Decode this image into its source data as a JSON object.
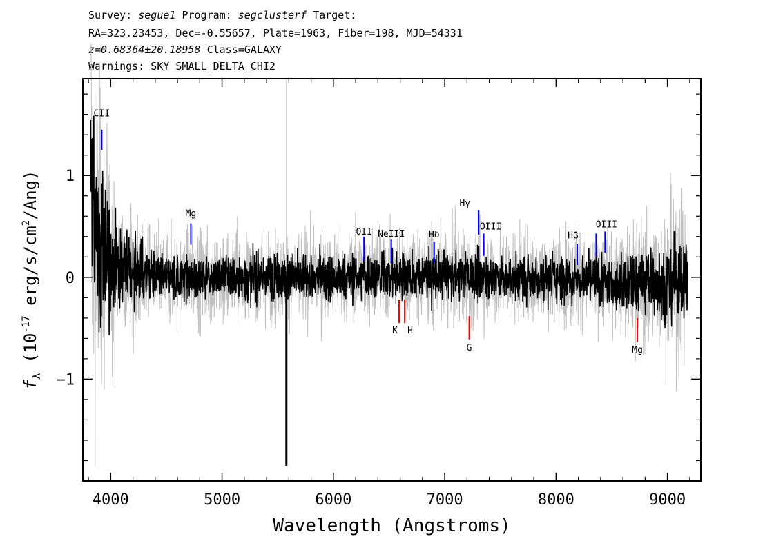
{
  "header": {
    "line1": {
      "survey_label": "Survey:",
      "survey": "segue1",
      "program_label": "Program:",
      "program": "segclusterf",
      "target_label": "Target:"
    },
    "line2": "RA=323.23453, Dec=-0.55657, Plate=1963, Fiber=198, MJD=54331",
    "line3": {
      "redshift": "z=0.68364±20.18958",
      "class": "Class=GALAXY"
    },
    "line4": "Warnings: SKY SMALL_DELTA_CHI2"
  },
  "chart_data": {
    "type": "line",
    "xlabel": "Wavelength (Angstroms)",
    "ylabel": "f_λ (10^-17 erg/s/cm²/Ang)",
    "xlim": [
      3750,
      9300
    ],
    "ylim": [
      -2.0,
      1.95
    ],
    "x_ticks": [
      4000,
      5000,
      6000,
      7000,
      8000,
      9000
    ],
    "y_ticks": [
      -1,
      0,
      1
    ],
    "series": [
      {
        "role": "flux",
        "color": "#000000",
        "knots": [
          [
            3820,
            1.2
          ],
          [
            3850,
            0.5
          ],
          [
            3900,
            0.3
          ],
          [
            4000,
            0.15
          ],
          [
            4200,
            0.05
          ],
          [
            4500,
            0.0
          ],
          [
            5000,
            0.0
          ],
          [
            5500,
            0.0
          ],
          [
            6000,
            0.0
          ],
          [
            6500,
            0.02
          ],
          [
            7000,
            0.02
          ],
          [
            7500,
            0.0
          ],
          [
            8000,
            0.0
          ],
          [
            8500,
            -0.05
          ],
          [
            9000,
            -0.05
          ],
          [
            9180,
            0.0
          ]
        ],
        "spike": {
          "x": 5578,
          "y": -1.85
        }
      },
      {
        "role": "error envelope",
        "color": "#c0c0c0"
      }
    ],
    "lines": [
      {
        "label": "CII",
        "x": 3920,
        "y0": 1.25,
        "y1": 1.45,
        "color": "#0000ff",
        "label_y": 1.58,
        "label_dx": 0
      },
      {
        "label": "Mg",
        "x": 4720,
        "y0": 0.32,
        "y1": 0.53,
        "color": "#0000ff",
        "label_y": 0.6,
        "label_dx": 0
      },
      {
        "label": "OII",
        "x": 6275,
        "y0": 0.16,
        "y1": 0.4,
        "color": "#0000ff",
        "label_y": 0.42,
        "label_dx": 0
      },
      {
        "label": "NeIII",
        "x": 6520,
        "y0": 0.14,
        "y1": 0.37,
        "color": "#0000ff",
        "label_y": 0.4,
        "label_dx": 0
      },
      {
        "label": "Hδ",
        "x": 6905,
        "y0": 0.14,
        "y1": 0.35,
        "color": "#0000ff",
        "label_y": 0.39,
        "label_dx": 0
      },
      {
        "label": "Hγ",
        "x": 7305,
        "y0": 0.42,
        "y1": 0.66,
        "color": "#0000ff",
        "label_y": 0.7,
        "label_dx": -20
      },
      {
        "label": "OIII",
        "x": 7350,
        "y0": 0.21,
        "y1": 0.43,
        "color": "#0000ff",
        "label_y": 0.47,
        "label_dx": 10
      },
      {
        "label": "Hβ",
        "x": 8190,
        "y0": 0.12,
        "y1": 0.33,
        "color": "#0000ff",
        "label_y": 0.38,
        "label_dx": -6
      },
      {
        "label": "OIII",
        "x": 8360,
        "y0": 0.2,
        "y1": 0.43,
        "color": "#0000ff",
        "label_y": 0.49,
        "label_dx": 15
      },
      {
        "label": "OIII",
        "x": 8440,
        "y0": 0.24,
        "y1": 0.45,
        "color": "#0000ff",
        "label_y": null,
        "label_dx": 0
      },
      {
        "label": "K",
        "x": 6590,
        "y0": -0.45,
        "y1": -0.22,
        "color": "#ff0000",
        "label_y": -0.55,
        "label_dx": -6
      },
      {
        "label": "H",
        "x": 6640,
        "y0": -0.45,
        "y1": -0.22,
        "color": "#ff0000",
        "label_y": -0.55,
        "label_dx": 8
      },
      {
        "label": "G",
        "x": 7220,
        "y0": -0.61,
        "y1": -0.38,
        "color": "#ff0000",
        "label_y": -0.72,
        "label_dx": 0
      },
      {
        "label": "Mg",
        "x": 8730,
        "y0": -0.64,
        "y1": -0.4,
        "color": "#ff0000",
        "label_y": -0.74,
        "label_dx": 0
      }
    ]
  }
}
